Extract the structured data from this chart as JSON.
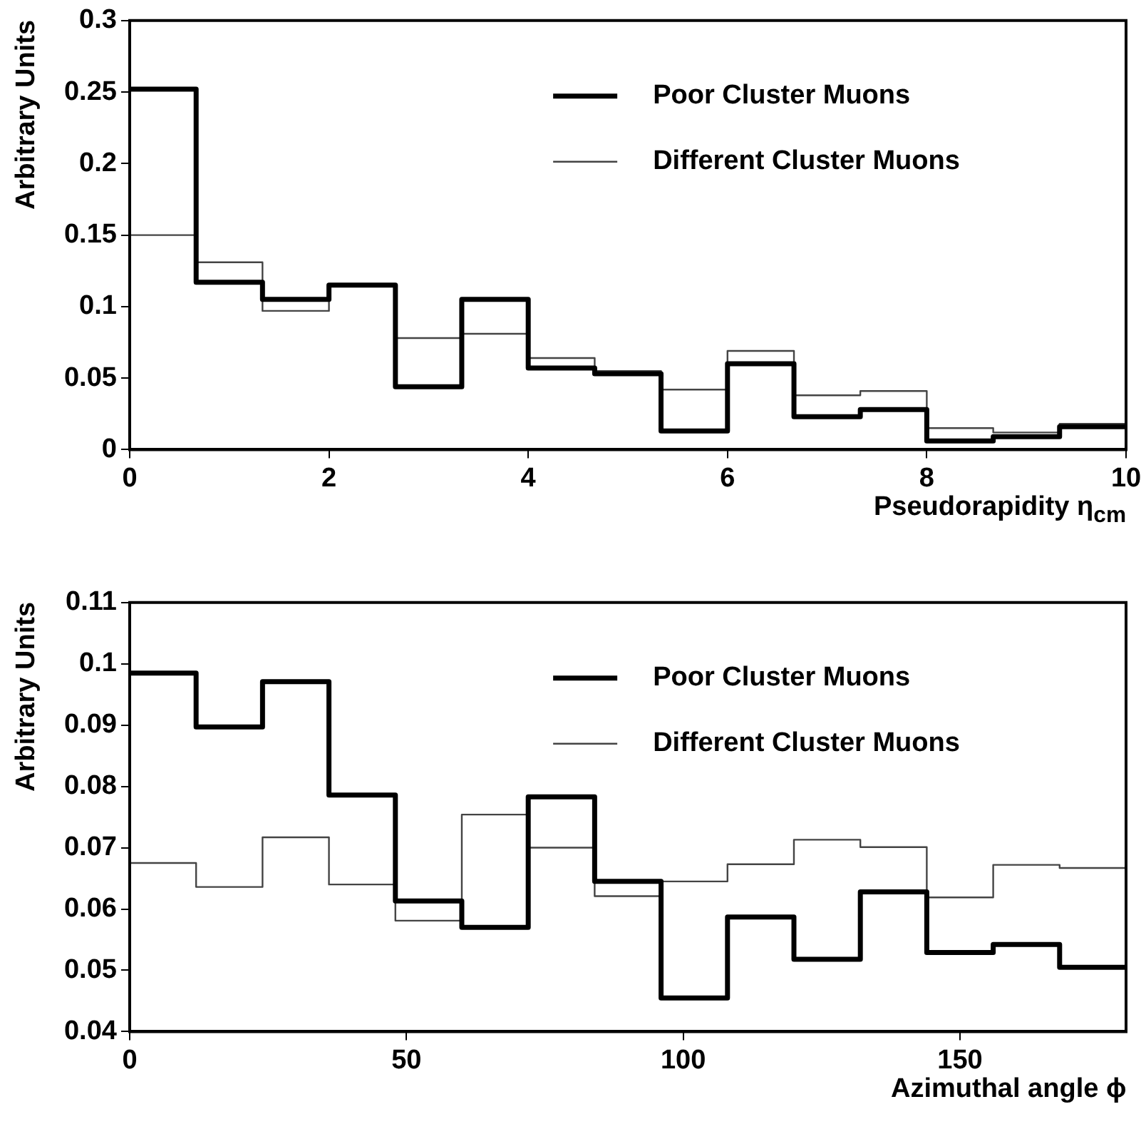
{
  "chart_data": [
    {
      "type": "histogram",
      "xlabel": "Pseudorapidity η$_{cm}$",
      "ylabel": "Arbitrary Units",
      "bins": [
        0,
        0.667,
        1.333,
        2,
        2.667,
        3.333,
        4,
        4.667,
        5.333,
        6,
        6.667,
        7.333,
        8,
        8.667,
        9.333,
        10
      ],
      "series": [
        {
          "name": "Poor Cluster Muons",
          "color": "#000000",
          "values": [
            0.252,
            0.117,
            0.105,
            0.115,
            0.044,
            0.105,
            0.057,
            0.053,
            0.013,
            0.06,
            0.023,
            0.028,
            0.006,
            0.009,
            0.016
          ]
        },
        {
          "name": "Different Cluster Muons",
          "color": "#444444",
          "values": [
            0.15,
            0.131,
            0.097,
            0.115,
            0.078,
            0.081,
            0.064,
            0.055,
            0.042,
            0.069,
            0.038,
            0.041,
            0.015,
            0.012,
            0.018
          ]
        }
      ],
      "xlim": [
        0,
        10
      ],
      "xticks": [
        0,
        2,
        4,
        6,
        8,
        10
      ],
      "ylim": [
        0,
        0.3
      ],
      "yticks": [
        0,
        0.05,
        0.1,
        0.15,
        0.2,
        0.25,
        0.3
      ],
      "grid": false,
      "legend": "top right"
    },
    {
      "type": "histogram",
      "xlabel": "Azimuthal angle ϕ",
      "ylabel": "Arbitrary Units",
      "bins": [
        0,
        12,
        24,
        36,
        48,
        60,
        72,
        84,
        96,
        108,
        120,
        132,
        144,
        156,
        168,
        180
      ],
      "series": [
        {
          "name": "Poor Cluster Muons",
          "color": "#000000",
          "values": [
            0.0985,
            0.0897,
            0.0971,
            0.0786,
            0.0613,
            0.057,
            0.0783,
            0.0645,
            0.0455,
            0.0587,
            0.0518,
            0.0628,
            0.0529,
            0.0542,
            0.0505
          ]
        },
        {
          "name": "Different Cluster Muons",
          "color": "#444444",
          "values": [
            0.0675,
            0.0636,
            0.0717,
            0.064,
            0.0581,
            0.0754,
            0.07,
            0.0621,
            0.0645,
            0.0673,
            0.0713,
            0.0701,
            0.0619,
            0.0672,
            0.0667
          ]
        }
      ],
      "xlim": [
        0,
        180
      ],
      "xticks": [
        0,
        50,
        100,
        150
      ],
      "ylim": [
        0.04,
        0.11
      ],
      "yticks": [
        0.04,
        0.05,
        0.06,
        0.07,
        0.08,
        0.09,
        0.1,
        0.11
      ],
      "grid": false,
      "legend": "top right"
    }
  ]
}
